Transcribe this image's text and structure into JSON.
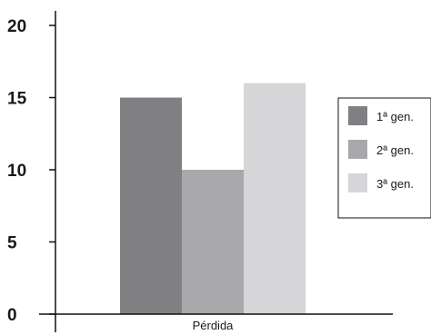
{
  "chart_data": {
    "type": "bar",
    "title": "",
    "xlabel": "",
    "ylabel": "",
    "categories": [
      "Pérdida"
    ],
    "series": [
      {
        "name": "1ª gen.",
        "values": [
          15
        ],
        "color": "#808083"
      },
      {
        "name": "2ª gen.",
        "values": [
          10
        ],
        "color": "#a8a8ab"
      },
      {
        "name": "3ª gen.",
        "values": [
          16
        ],
        "color": "#d6d6d8"
      }
    ],
    "ylim": [
      0,
      20
    ],
    "yticks": [
      0,
      5,
      10,
      15,
      20
    ],
    "grid": false,
    "legend_position": "right"
  }
}
